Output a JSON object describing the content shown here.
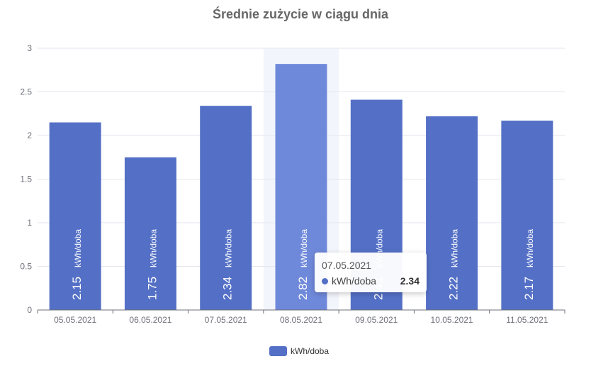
{
  "chart_data": {
    "type": "bar",
    "title": "Średnie zużycie w ciągu dnia",
    "categories": [
      "05.05.2021",
      "06.05.2021",
      "07.05.2021",
      "08.05.2021",
      "09.05.2021",
      "10.05.2021",
      "11.05.2021"
    ],
    "series": [
      {
        "name": "kWh/doba",
        "color": "#5470c6",
        "values": [
          2.15,
          1.75,
          2.34,
          2.82,
          2.41,
          2.22,
          2.17
        ],
        "value_labels": [
          "2.15",
          "1.75",
          "2.34",
          "2.82",
          "2.41",
          "2.22",
          "2.17"
        ]
      }
    ],
    "bar_inner_label": "kWh/doba",
    "y_ticks": [
      "0",
      "0.5",
      "1",
      "1.5",
      "2",
      "2.5",
      "3"
    ],
    "ylim": [
      0,
      3
    ],
    "grid": true,
    "legend": {
      "position": "bottom",
      "label": "kWh/doba"
    },
    "highlighted_index": 3,
    "tooltip": {
      "title": "07.05.2021",
      "series_name": "kWh/doba",
      "value": "2.34"
    }
  }
}
